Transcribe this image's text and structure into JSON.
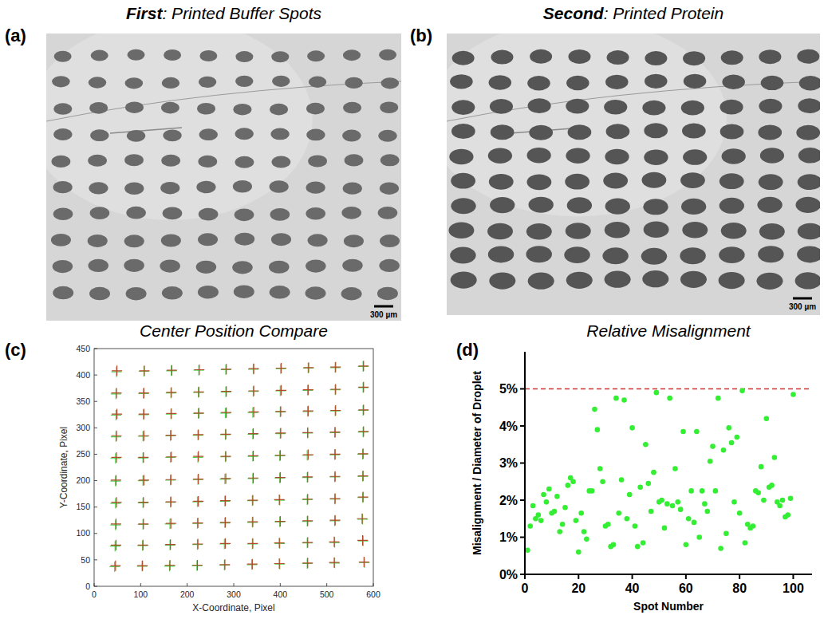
{
  "chart_data": [
    {
      "type": "image",
      "letter": "(a)",
      "title_bold": "First",
      "title": ": Printed Buffer Spots",
      "rows": 10,
      "columns": 10,
      "scale_bar": "300 µm",
      "color": "#6a6a6a"
    },
    {
      "type": "image",
      "letter": "(b)",
      "title_bold": "Second",
      "title": ": Printed Protein",
      "rows": 10,
      "columns": 10,
      "scale_bar": "300 µm",
      "color": "#555555"
    },
    {
      "type": "scatter",
      "letter": "(c)",
      "title": "Center Position Compare",
      "x_label": "X-Coordinate, Pixel",
      "y_label": "Y-Coordinate, Pixel",
      "xlim": [
        0,
        600
      ],
      "ylim": [
        0,
        450
      ],
      "xticks": [
        0,
        100,
        200,
        300,
        400,
        500,
        600
      ],
      "yticks": [
        0,
        50,
        100,
        150,
        200,
        250,
        300,
        350,
        400,
        450
      ],
      "marker": "cross",
      "series": [
        {
          "color": "#4fd64f",
          "x": [
            44,
            103,
            162,
            221,
            280,
            339,
            399,
            458,
            517,
            581,
            45,
            104,
            163,
            222,
            280,
            340,
            399,
            458,
            517,
            578,
            46,
            105,
            163,
            222,
            281,
            340,
            399,
            458,
            517,
            577,
            46,
            105,
            164,
            222,
            281,
            340,
            399,
            458,
            517,
            577,
            46,
            105,
            164,
            223,
            281,
            341,
            399,
            458,
            517,
            577,
            46,
            105,
            164,
            223,
            282,
            341,
            399,
            458,
            517,
            577,
            47,
            105,
            164,
            223,
            282,
            341,
            400,
            459,
            517,
            578,
            47,
            106,
            165,
            224,
            282,
            341,
            400,
            459,
            518,
            578,
            47,
            106,
            165,
            224,
            283,
            342,
            400,
            459,
            518,
            578,
            48,
            107,
            166,
            225,
            283,
            342,
            401,
            460,
            518,
            578
          ],
          "values": [
            37,
            38,
            38,
            39,
            40,
            41,
            42,
            43,
            44,
            45,
            76,
            77,
            78,
            79,
            80,
            80,
            81,
            82,
            83,
            86,
            116,
            117,
            118,
            119,
            120,
            121,
            122,
            123,
            124,
            127,
            157,
            158,
            159,
            160,
            161,
            162,
            163,
            164,
            165,
            168,
            199,
            200,
            201,
            202,
            203,
            204,
            205,
            206,
            207,
            208,
            242,
            243,
            244,
            244,
            245,
            246,
            247,
            248,
            249,
            250,
            283,
            284,
            285,
            286,
            287,
            288,
            289,
            290,
            291,
            292,
            324,
            325,
            326,
            327,
            328,
            329,
            330,
            331,
            332,
            333,
            364,
            365,
            366,
            367,
            368,
            369,
            370,
            371,
            372,
            376,
            406,
            407,
            408,
            409,
            410,
            411,
            412,
            413,
            414,
            416
          ]
        },
        {
          "color": "#b04a2a",
          "x": [
            46,
            104,
            163,
            222,
            281,
            340,
            398,
            459,
            516,
            580,
            47,
            105,
            164,
            223,
            282,
            341,
            398,
            459,
            516,
            577,
            47,
            106,
            165,
            223,
            282,
            341,
            400,
            459,
            518,
            576,
            48,
            106,
            165,
            224,
            282,
            341,
            398,
            459,
            518,
            578,
            47,
            107,
            165,
            224,
            283,
            342,
            400,
            459,
            518,
            578,
            48,
            106,
            166,
            224,
            283,
            342,
            400,
            460,
            518,
            578,
            48,
            107,
            165,
            224,
            283,
            342,
            401,
            459,
            518,
            579,
            49,
            107,
            166,
            225,
            284,
            343,
            401,
            460,
            519,
            579,
            48,
            107,
            166,
            225,
            284,
            343,
            402,
            460,
            519,
            579,
            49,
            108,
            167,
            226,
            284,
            343,
            402,
            461,
            519,
            579
          ],
          "values": [
            39,
            39,
            40,
            40,
            41,
            42,
            43,
            44,
            45,
            46,
            78,
            78,
            79,
            80,
            81,
            81,
            82,
            83,
            84,
            87,
            118,
            118,
            119,
            120,
            121,
            122,
            123,
            124,
            125,
            128,
            159,
            159,
            160,
            161,
            162,
            163,
            164,
            165,
            166,
            169,
            201,
            201,
            202,
            203,
            204,
            205,
            206,
            207,
            208,
            209,
            244,
            244,
            245,
            246,
            246,
            247,
            248,
            249,
            250,
            251,
            285,
            285,
            286,
            287,
            288,
            289,
            290,
            291,
            292,
            293,
            326,
            326,
            327,
            328,
            329,
            330,
            331,
            332,
            333,
            334,
            366,
            366,
            367,
            368,
            369,
            370,
            371,
            372,
            373,
            377,
            408,
            408,
            409,
            410,
            411,
            412,
            413,
            414,
            415,
            417
          ]
        }
      ]
    },
    {
      "type": "scatter",
      "letter": "(d)",
      "title": "Relative Misalignment",
      "x_label": "Spot Number",
      "y_label": "Misalignment / Diameter of Droplet",
      "xlim": [
        0,
        107
      ],
      "ylim": [
        0,
        6
      ],
      "xticks": [
        0,
        20,
        40,
        60,
        80,
        100
      ],
      "yticks": [
        {
          "value": 0,
          "label": "0%"
        },
        {
          "value": 1,
          "label": "1%"
        },
        {
          "value": 2,
          "label": "2%"
        },
        {
          "value": 3,
          "label": "3%"
        },
        {
          "value": 4,
          "label": "4%"
        },
        {
          "value": 5,
          "label": "5%"
        }
      ],
      "color": "#33ee33",
      "marker": "circle",
      "x": [
        1,
        2,
        3,
        4,
        5,
        6,
        7,
        8,
        9,
        10,
        11,
        12,
        13,
        14,
        15,
        16,
        17,
        18,
        19,
        20,
        21,
        22,
        23,
        24,
        25,
        26,
        27,
        28,
        29,
        30,
        31,
        32,
        33,
        34,
        35,
        36,
        37,
        38,
        39,
        40,
        41,
        42,
        43,
        44,
        45,
        46,
        47,
        48,
        49,
        50,
        51,
        52,
        53,
        54,
        55,
        56,
        57,
        58,
        59,
        60,
        61,
        62,
        63,
        64,
        65,
        66,
        67,
        68,
        69,
        70,
        71,
        72,
        73,
        74,
        75,
        76,
        77,
        78,
        79,
        80,
        81,
        82,
        83,
        84,
        85,
        86,
        87,
        88,
        89,
        90,
        91,
        92,
        93,
        94,
        95,
        96,
        97,
        98,
        99,
        100
      ],
      "values": [
        0.65,
        1.3,
        1.85,
        1.5,
        1.6,
        1.45,
        2.15,
        1.95,
        2.3,
        1.65,
        1.7,
        2.1,
        1.15,
        1.35,
        1.8,
        2.4,
        2.6,
        2.5,
        1.45,
        0.6,
        1.65,
        1.15,
        0.95,
        2.25,
        2.25,
        4.45,
        3.9,
        2.85,
        2.5,
        1.3,
        1.35,
        0.75,
        0.8,
        4.75,
        1.65,
        2.55,
        4.7,
        1.5,
        2.15,
        3.95,
        1.3,
        0.75,
        2.35,
        0.85,
        3.5,
        2.45,
        1.7,
        2.75,
        4.9,
        1.95,
        2.0,
        1.25,
        1.9,
        4.75,
        1.85,
        2.85,
        1.95,
        1.75,
        3.85,
        0.8,
        1.5,
        2.25,
        1.4,
        3.85,
        1.0,
        2.25,
        1.9,
        1.7,
        3.05,
        3.45,
        2.25,
        4.75,
        0.7,
        3.35,
        1.1,
        3.95,
        3.55,
        1.95,
        3.7,
        1.65,
        4.95,
        0.85,
        1.35,
        1.25,
        1.3,
        2.25,
        2.2,
        2.9,
        2.0,
        4.2,
        2.35,
        2.4,
        3.15,
        1.95,
        1.85,
        2.0,
        1.55,
        1.6,
        2.05,
        4.85
      ],
      "reference_line": {
        "y": 5,
        "color": "#cc3333",
        "line_style": "dashed"
      }
    }
  ]
}
